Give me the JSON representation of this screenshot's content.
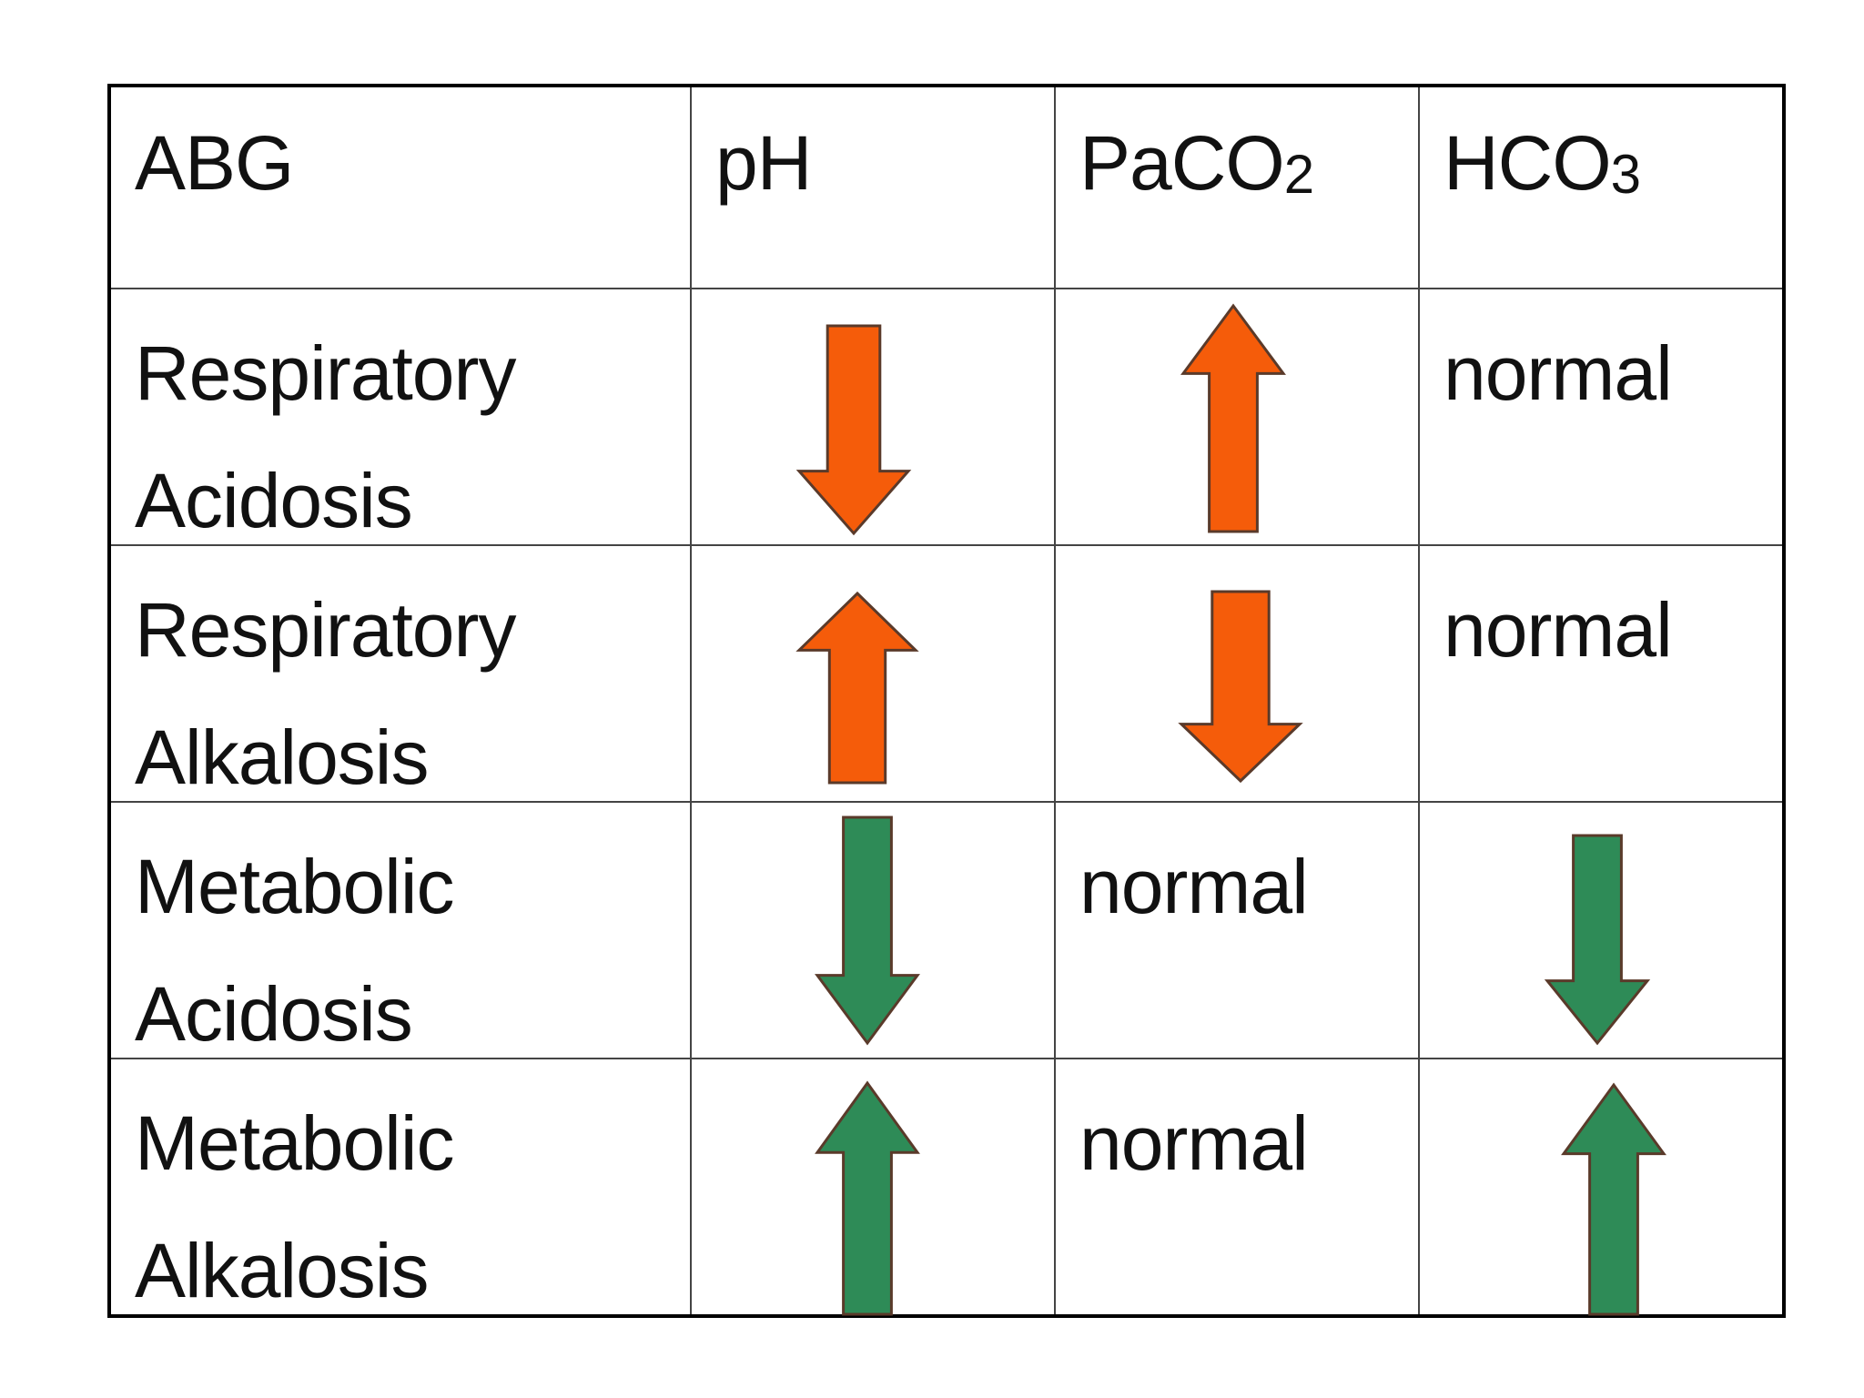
{
  "table": {
    "header": {
      "abg": "ABG",
      "ph": "pH",
      "paco2_base": "PaCO",
      "paco2_sub": "2",
      "hco3_base": "HCO",
      "hco3_sub": "3"
    },
    "rows": [
      {
        "label_line1": "Respiratory",
        "label_line2": "Acidosis",
        "ph": {
          "arrow": "down",
          "color": "orange"
        },
        "paco2": {
          "arrow": "up",
          "color": "orange"
        },
        "hco3": {
          "text": "normal"
        }
      },
      {
        "label_line1": "Respiratory",
        "label_line2": "Alkalosis",
        "ph": {
          "arrow": "up",
          "color": "orange"
        },
        "paco2": {
          "arrow": "down",
          "color": "orange"
        },
        "hco3": {
          "text": "normal"
        }
      },
      {
        "label_line1": "Metabolic",
        "label_line2": "Acidosis",
        "ph": {
          "arrow": "down",
          "color": "green"
        },
        "paco2": {
          "text": "normal"
        },
        "hco3": {
          "arrow": "down",
          "color": "green"
        }
      },
      {
        "label_line1": "Metabolic",
        "label_line2": "Alkalosis",
        "ph": {
          "arrow": "up",
          "color": "green"
        },
        "paco2": {
          "text": "normal"
        },
        "hco3": {
          "arrow": "up",
          "color": "green"
        }
      }
    ]
  },
  "colors": {
    "orange": "#f55c0a",
    "green": "#2e8b57",
    "arrow_stroke": "#5a3a2a",
    "border": "#000000"
  },
  "icons": {
    "up": "arrow-up-icon",
    "down": "arrow-down-icon"
  }
}
